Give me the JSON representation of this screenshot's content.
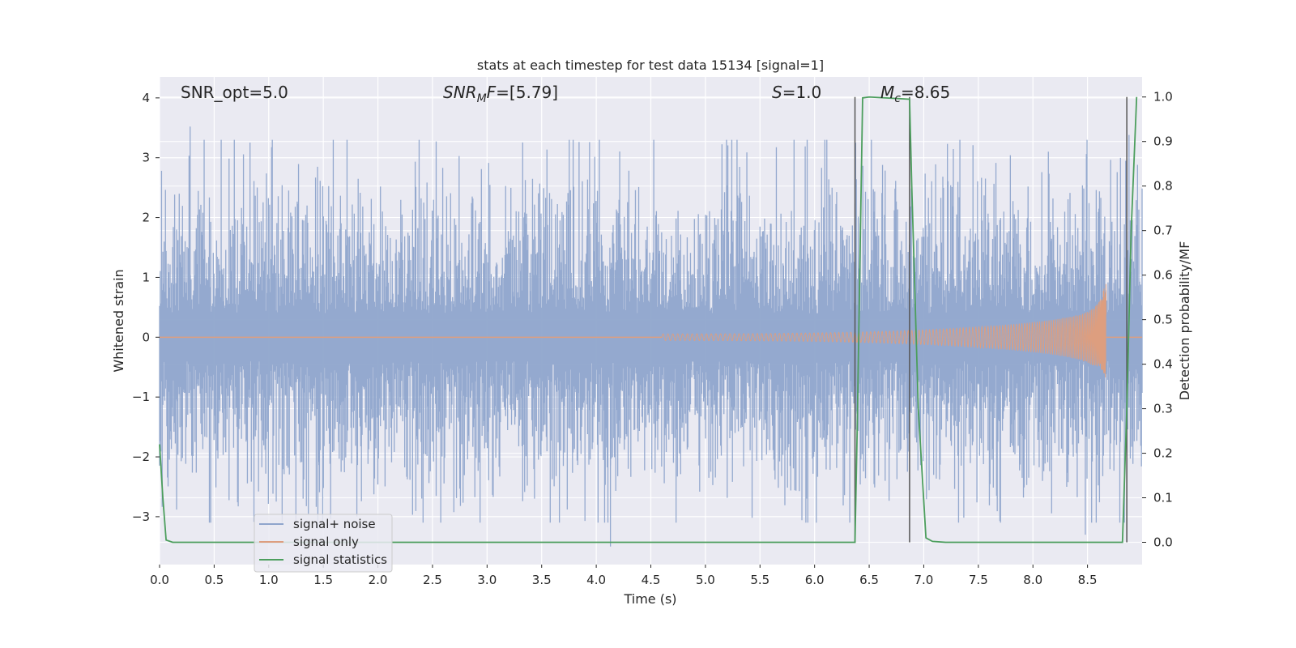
{
  "colors": {
    "axes_bg": "#eaeaf2",
    "grid": "#ffffff",
    "signal_noise": "#8fa5cc",
    "signal_only": "#dd9e7f",
    "statistics": "#4c9e5d",
    "marker": "#555555"
  },
  "chart_data": {
    "type": "line",
    "title": "stats at each timestep for test data 15134 [signal=1]",
    "xlabel": "Time (s)",
    "ylabel": "Whitened strain",
    "y2label": "Detection probability/MF",
    "xlim": [
      0.0,
      9.0
    ],
    "ylim": [
      -3.8,
      4.35
    ],
    "y2lim": [
      -0.05,
      1.045
    ],
    "xticks": [
      "0.0",
      "0.5",
      "1.0",
      "1.5",
      "2.0",
      "2.5",
      "3.0",
      "3.5",
      "4.0",
      "4.5",
      "5.0",
      "5.5",
      "6.0",
      "6.5",
      "7.0",
      "7.5",
      "8.0",
      "8.5"
    ],
    "yticks": [
      "4",
      "3",
      "2",
      "1",
      "0",
      "−1",
      "−2",
      "−3"
    ],
    "y2ticks": [
      "1.0",
      "0.9",
      "0.8",
      "0.7",
      "0.6",
      "0.5",
      "0.4",
      "0.3",
      "0.2",
      "0.1",
      "0.0"
    ],
    "grid": true,
    "legend_position": "bottom-left",
    "annotations": {
      "snr_opt": "SNR_opt=5.0",
      "snr_mf_sym": "SNR",
      "snr_mf_sub": "M",
      "snr_mf_sym2": "F",
      "snr_mf_val": "=[5.79]",
      "s_sym": "S",
      "s_val": "=1.0",
      "mc_sym": "M",
      "mc_sub": "c",
      "mc_val": "=8.65"
    },
    "series": [
      {
        "name": "signal+ noise",
        "description_kind": "dense whitened noise",
        "typical_amplitude": 1.2,
        "extremes": [
          [
            0.28,
            3.52
          ],
          [
            4.13,
            -3.5
          ],
          [
            1.45,
            -3.2
          ],
          [
            8.48,
            -3.3
          ],
          [
            8.88,
            3.38
          ]
        ]
      },
      {
        "name": "signal only",
        "chirp_start": 4.6,
        "chirp_end": 8.67,
        "peak_upper": 0.78,
        "peak_lower": -0.48
      },
      {
        "name": "signal statistics",
        "x": [
          0.0,
          0.03,
          0.06,
          0.12,
          0.5,
          6.37,
          6.39,
          6.44,
          6.5,
          6.87,
          6.89,
          6.95,
          7.02,
          7.08,
          7.2,
          8.82,
          8.86,
          8.9,
          8.95
        ],
        "y": [
          0.22,
          0.1,
          0.005,
          0.0,
          0.0,
          0.0,
          0.25,
          0.998,
          1.0,
          0.995,
          0.8,
          0.3,
          0.01,
          0.002,
          0.0,
          0.0,
          0.3,
          0.7,
          1.0
        ]
      }
    ],
    "marker_lines_x": [
      6.37,
      6.87,
      8.86
    ]
  }
}
